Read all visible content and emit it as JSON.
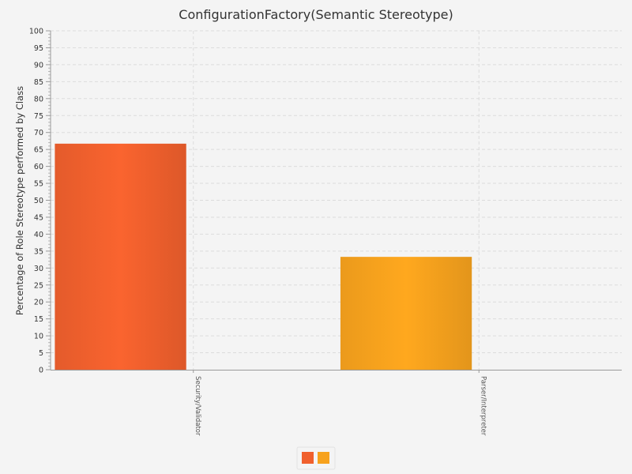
{
  "chart_data": {
    "type": "bar",
    "title": "ConfigurationFactory(Semantic Stereotype)",
    "xlabel": "",
    "ylabel": "Percentage of Role Stereotype performed by Class",
    "ylim": [
      0,
      100
    ],
    "ytick_step": 5,
    "categories": [
      "Security/Validator",
      "Parser/Interpreter"
    ],
    "values": [
      66.7,
      33.3
    ],
    "colors": [
      "#f0602d",
      "#f7a21d"
    ],
    "grid": true,
    "legend": "bottom-center"
  }
}
